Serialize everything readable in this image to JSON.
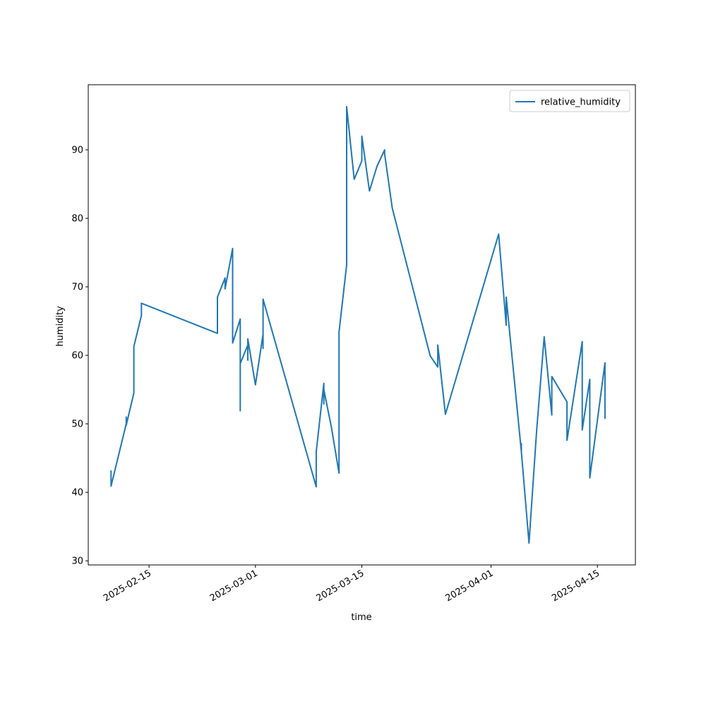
{
  "chart_data": {
    "type": "line",
    "xlabel": "time",
    "ylabel": "humidity",
    "x": [
      "2025-02-10",
      "2025-02-10",
      "2025-02-12",
      "2025-02-12",
      "2025-02-12",
      "2025-02-13",
      "2025-02-13",
      "2025-02-14",
      "2025-02-14",
      "2025-02-14",
      "2025-02-24",
      "2025-02-24",
      "2025-02-25",
      "2025-02-25",
      "2025-02-25",
      "2025-02-26",
      "2025-02-26",
      "2025-02-26",
      "2025-02-26",
      "2025-02-27",
      "2025-02-27",
      "2025-02-27",
      "2025-02-28",
      "2025-02-28",
      "2025-02-28",
      "2025-03-01",
      "2025-03-02",
      "2025-03-02",
      "2025-03-02",
      "2025-03-02",
      "2025-03-09",
      "2025-03-09",
      "2025-03-10",
      "2025-03-10",
      "2025-03-10",
      "2025-03-11",
      "2025-03-12",
      "2025-03-12",
      "2025-03-12",
      "2025-03-13",
      "2025-03-13",
      "2025-03-13",
      "2025-03-14",
      "2025-03-15",
      "2025-03-15",
      "2025-03-16",
      "2025-03-17",
      "2025-03-18",
      "2025-03-18",
      "2025-03-18",
      "2025-03-19",
      "2025-03-24",
      "2025-03-25",
      "2025-03-25",
      "2025-03-26",
      "2025-04-02",
      "2025-04-03",
      "2025-04-03",
      "2025-04-05",
      "2025-04-05",
      "2025-04-05",
      "2025-04-06",
      "2025-04-07",
      "2025-04-08",
      "2025-04-09",
      "2025-04-09",
      "2025-04-11",
      "2025-04-11",
      "2025-04-13",
      "2025-04-13",
      "2025-04-14",
      "2025-04-14",
      "2025-04-16",
      "2025-04-16",
      "2025-04-16",
      "2025-04-16"
    ],
    "series": [
      {
        "name": "relative_humidity",
        "color": "#1f77b4",
        "values": [
          43.2,
          40.9,
          50,
          51,
          49.8,
          54.5,
          61.3,
          65.8,
          66.8,
          67.6,
          63.2,
          68.5,
          71.3,
          69.9,
          69.7,
          75.6,
          71.4,
          72.2,
          61.8,
          65.3,
          51.9,
          58.8,
          61.5,
          59.3,
          62.4,
          55.7,
          63.1,
          61,
          61.5,
          68.2,
          40.8,
          45.9,
          55.9,
          52.9,
          55,
          49.5,
          42.8,
          53.6,
          63.4,
          73.2,
          78.9,
          96.3,
          85.7,
          88.4,
          92,
          84,
          87.6,
          90,
          89.9,
          89.4,
          81.5,
          59.9,
          58.3,
          61.5,
          51.4,
          77.7,
          64.4,
          68.5,
          45.9,
          47.1,
          45.9,
          32.6,
          49,
          62.7,
          51.3,
          56.9,
          53.2,
          47.6,
          62,
          49.1,
          56.5,
          42.1,
          58.9,
          58.9,
          50.8,
          58.4
        ]
      }
    ],
    "xlim": [
      "2025-02-07",
      "2025-04-20"
    ],
    "xticks": [
      "2025-02-15",
      "2025-03-01",
      "2025-03-15",
      "2025-04-01",
      "2025-04-15"
    ],
    "ylim": [
      29.4,
      99.5
    ],
    "yticks": [
      30,
      40,
      50,
      60,
      70,
      80,
      90
    ],
    "legend": "upper right"
  }
}
